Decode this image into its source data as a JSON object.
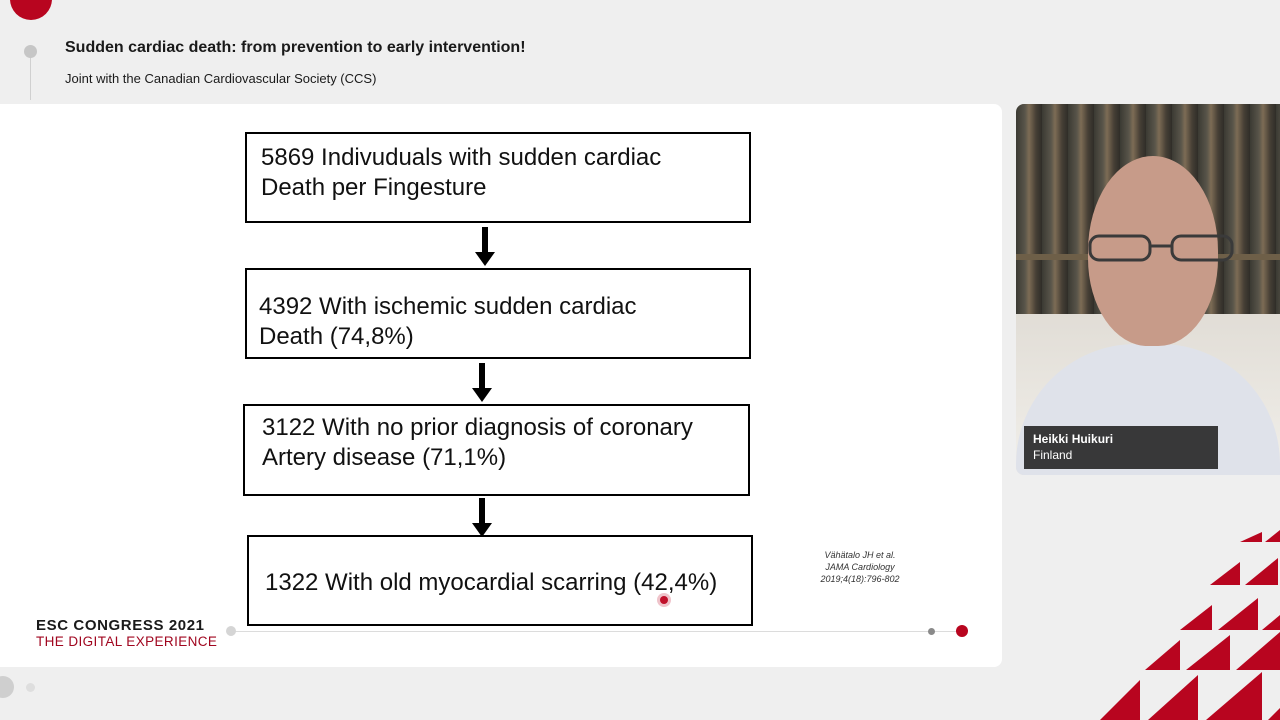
{
  "header": {
    "title": "Sudden cardiac death: from prevention to early intervention!",
    "subtitle": "Joint with the Canadian Cardiovascular Society (CCS)"
  },
  "slide": {
    "boxes": [
      {
        "line1": "5869 Indivuduals with sudden cardiac",
        "line2": "Death per Fingesture"
      },
      {
        "line1": "4392 With ischemic sudden cardiac",
        "line2": "Death (74,8%)"
      },
      {
        "line1": "3122 With no prior diagnosis of coronary",
        "line2": "Artery disease (71,1%)"
      },
      {
        "line1": "1322 With old myocardial scarring (42,4%)"
      }
    ],
    "citation": {
      "line1": "Vähätalo JH et al.",
      "line2": "JAMA Cardiology",
      "line3": "2019;4(18):796-802"
    }
  },
  "footer": {
    "congress": "ESC CONGRESS 2021",
    "tagline": "THE DIGITAL EXPERIENCE"
  },
  "speaker": {
    "name": "Heikki Huikuri",
    "country": "Finland"
  },
  "colors": {
    "accent": "#b8051f",
    "background": "#efefef"
  }
}
